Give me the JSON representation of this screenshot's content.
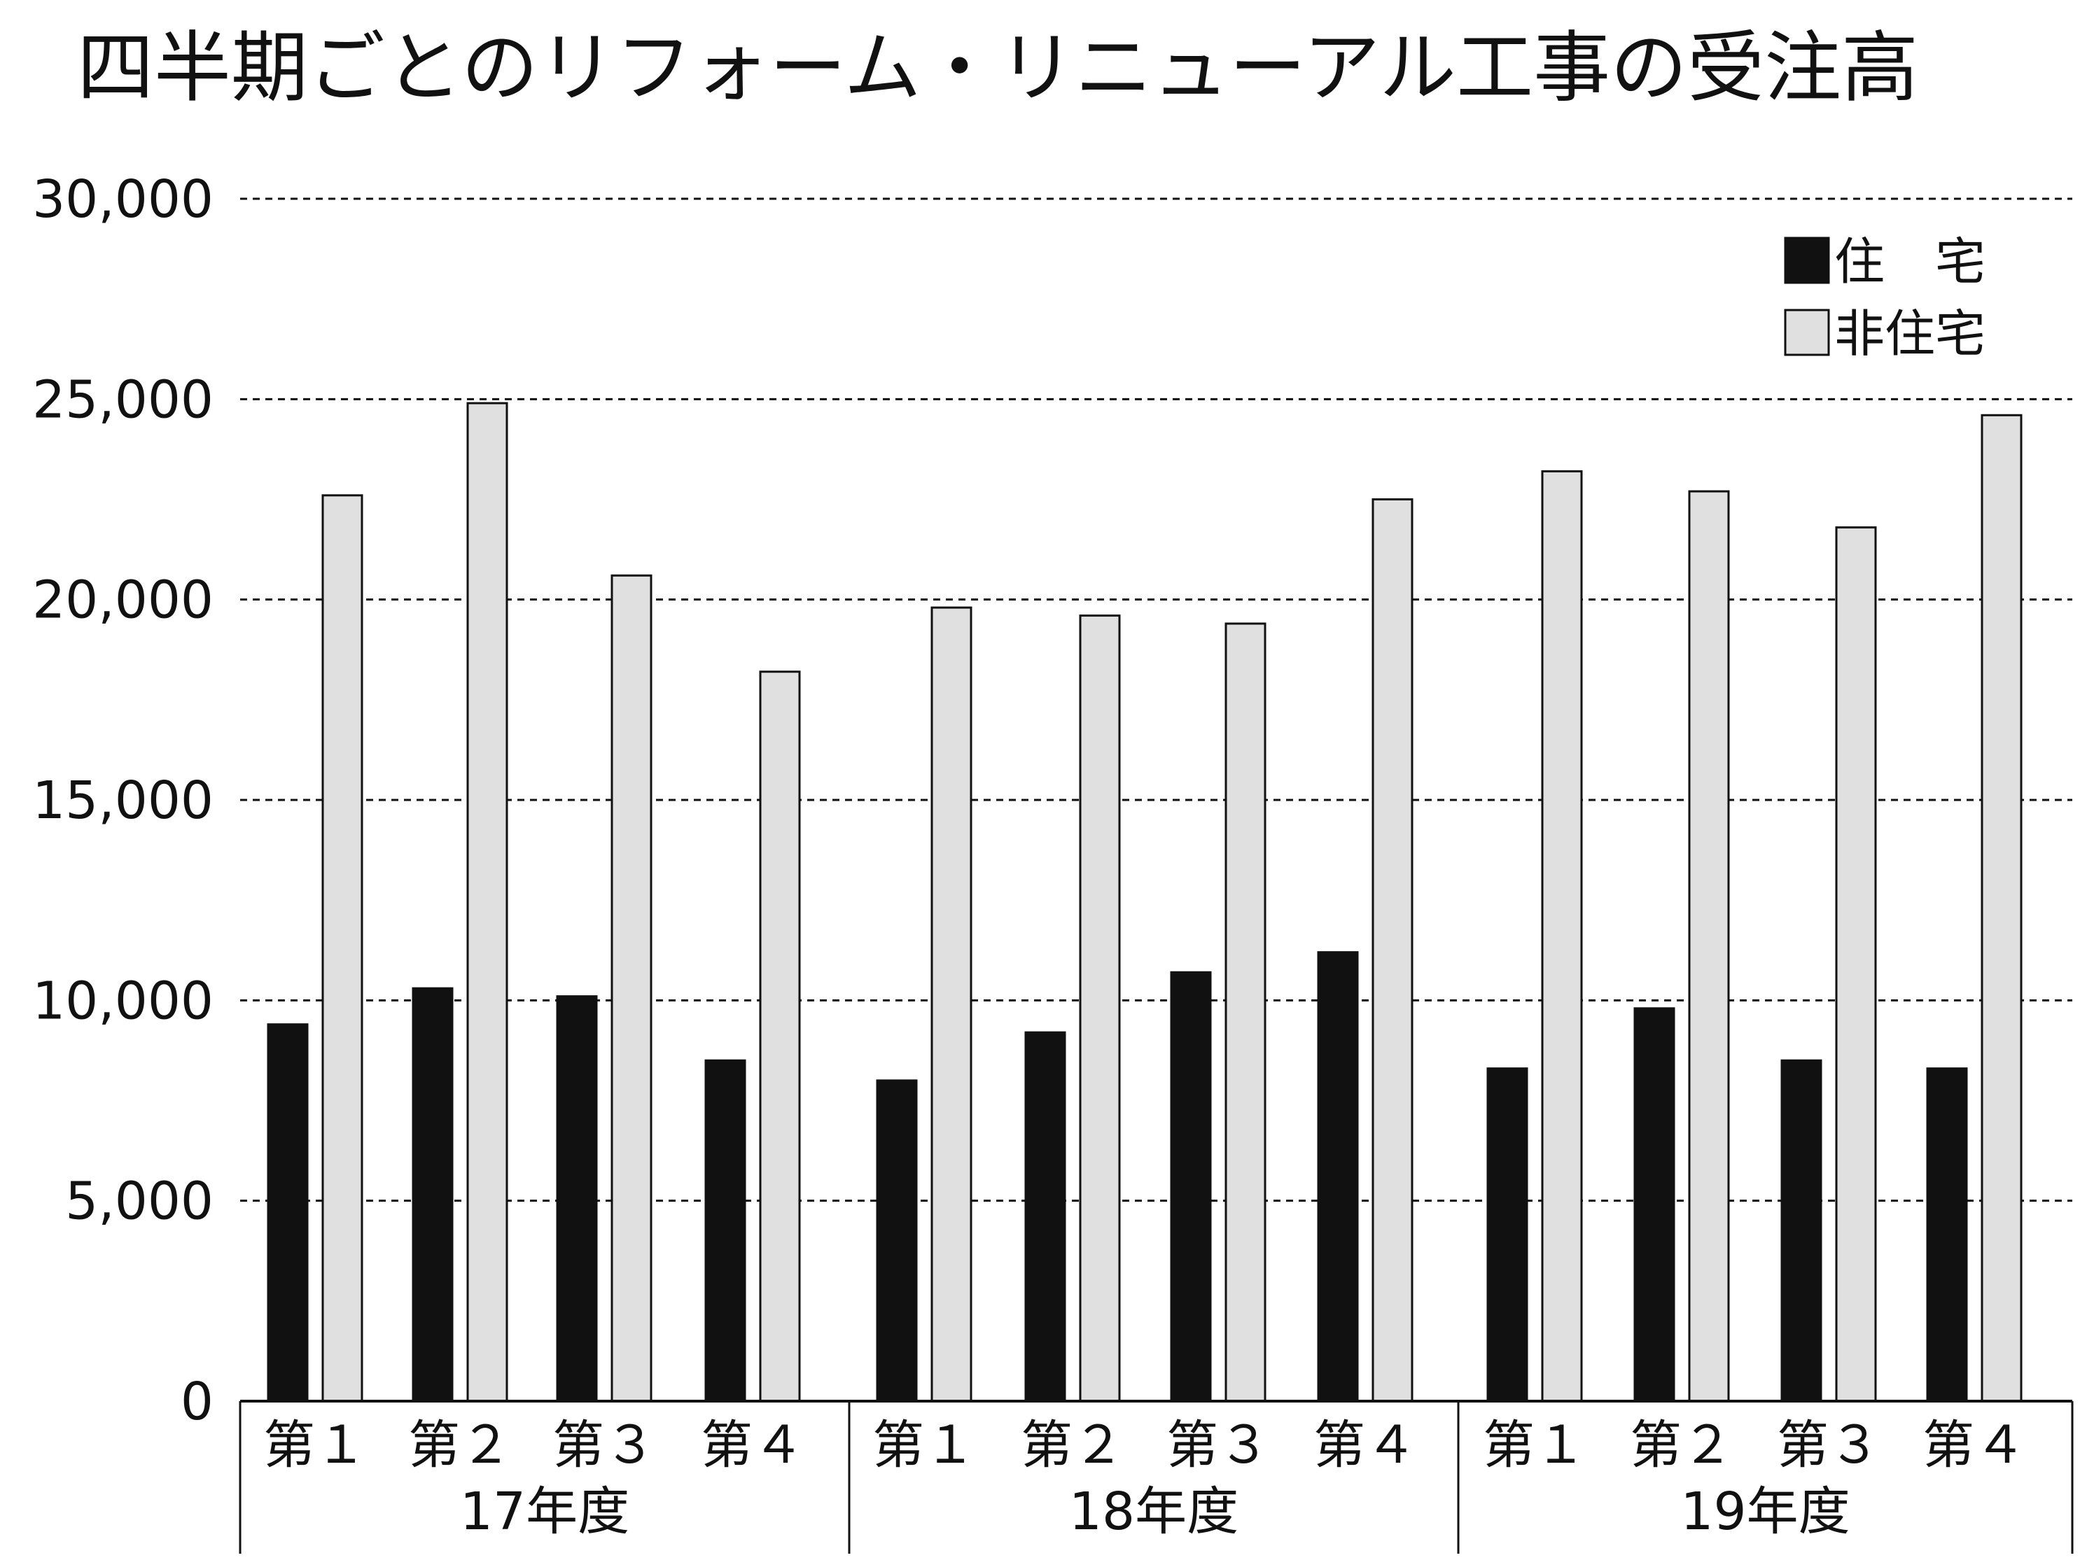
{
  "chart_data": {
    "type": "bar",
    "title": "四半期ごとのリフォーム・リニューアル工事の受注高",
    "xlabel": "",
    "ylabel": "",
    "ylim": [
      0,
      30000
    ],
    "yticks": [
      "0",
      "5,000",
      "10,000",
      "15,000",
      "20,000",
      "25,000",
      "30,000"
    ],
    "grid": "horizontal-dashed",
    "legend_position": "top-right",
    "groups": [
      "17年度",
      "18年度",
      "19年度"
    ],
    "categories": [
      "第１",
      "第２",
      "第３",
      "第４",
      "第１",
      "第２",
      "第３",
      "第４",
      "第１",
      "第２",
      "第３",
      "第４"
    ],
    "series": [
      {
        "name": "住　宅",
        "color": "#111111",
        "values": [
          9400,
          10300,
          10100,
          8500,
          8000,
          9200,
          10700,
          11200,
          8300,
          9800,
          8500,
          8300
        ]
      },
      {
        "name": "非住宅",
        "color": "#e0e0e0",
        "values": [
          22600,
          24900,
          20600,
          18200,
          19800,
          19600,
          19400,
          22500,
          23200,
          22700,
          21800,
          24600
        ]
      }
    ]
  }
}
